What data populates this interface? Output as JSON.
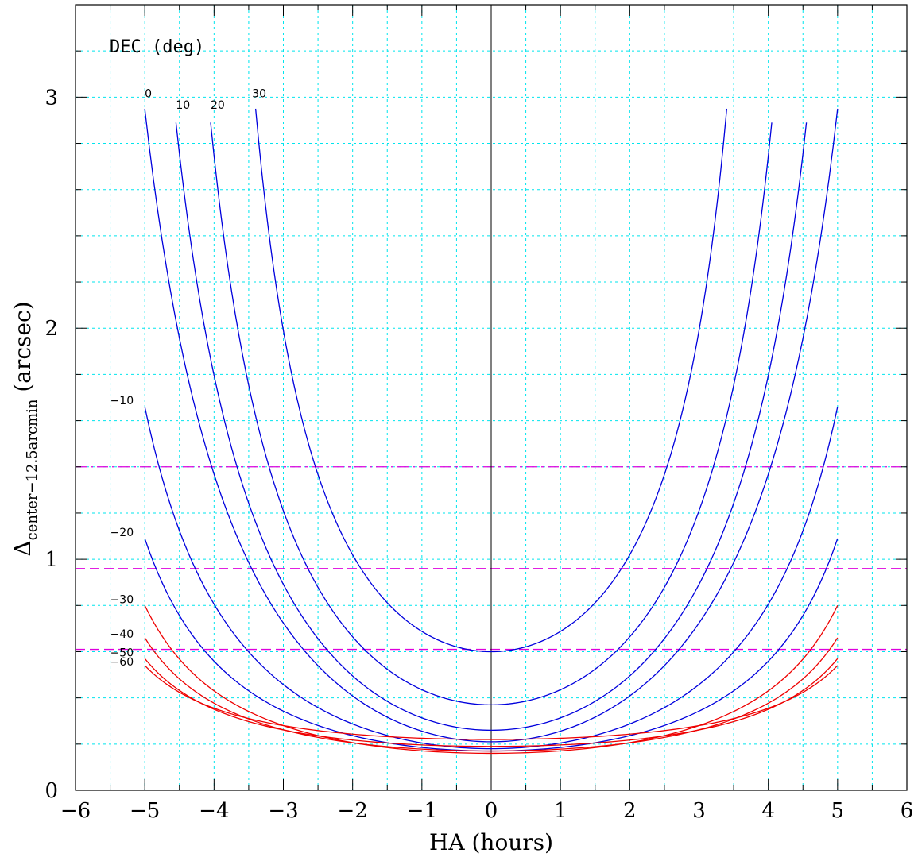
{
  "chart_data": {
    "type": "line",
    "xlabel": "HA (hours)",
    "ylabel_main": "Δ",
    "ylabel_sub": "center−12.5arcmin",
    "ylabel_tail": " (arcsec)",
    "legend_title": "DEC (deg)",
    "xlim": [
      -6,
      6
    ],
    "ylim": [
      0,
      3.4
    ],
    "x_ticks": [
      -6,
      -5,
      -4,
      -3,
      -2,
      -1,
      0,
      1,
      2,
      3,
      4,
      5,
      6
    ],
    "x_tick_labels": [
      "−6",
      "−5",
      "−4",
      "−3",
      "−2",
      "−1",
      "0",
      "1",
      "2",
      "3",
      "4",
      "5",
      "6"
    ],
    "y_ticks": [
      0,
      1,
      2,
      3
    ],
    "y_tick_labels": [
      "0",
      "1",
      "2",
      "3"
    ],
    "grid": true,
    "colors": {
      "blue": "#0000dd",
      "red": "#ee0000",
      "grid": "#00e5ee",
      "reference": "#dd00dd",
      "axis": "#000000"
    },
    "x": [
      -5,
      -4.5,
      -4,
      -3.5,
      -3,
      -2.5,
      -2,
      -1.5,
      -1,
      -0.5,
      0,
      0.5,
      1,
      1.5,
      2,
      2.5,
      3,
      3.5,
      4,
      4.5,
      5
    ],
    "series": [
      {
        "name": "30",
        "color": "blue",
        "x_range": [
          -3.4,
          3.4
        ],
        "min": 0.6,
        "end": 2.95,
        "label_x": -3.45,
        "label_y": 3.0
      },
      {
        "name": "20",
        "color": "blue",
        "x_range": [
          -4.05,
          4.05
        ],
        "min": 0.37,
        "end": 2.89,
        "label_x": -4.05,
        "label_y": 2.95
      },
      {
        "name": "10",
        "color": "blue",
        "x_range": [
          -4.55,
          4.55
        ],
        "min": 0.26,
        "end": 2.89,
        "label_x": -4.55,
        "label_y": 2.95
      },
      {
        "name": "0",
        "color": "blue",
        "x_range": [
          -5,
          5
        ],
        "min": 0.21,
        "end": 2.95,
        "label_x": -5.0,
        "label_y": 3.0
      },
      {
        "name": "−10",
        "color": "blue",
        "x_range": [
          -5,
          5
        ],
        "min": 0.18,
        "end": 1.66,
        "label_x": -5.5,
        "label_y": 1.67
      },
      {
        "name": "−20",
        "color": "blue",
        "x_range": [
          -5,
          5
        ],
        "min": 0.17,
        "end": 1.09,
        "label_x": -5.5,
        "label_y": 1.1
      },
      {
        "name": "−30",
        "color": "red",
        "x_range": [
          -5,
          5
        ],
        "min": 0.16,
        "end": 0.8,
        "label_x": -5.5,
        "label_y": 0.81
      },
      {
        "name": "−40",
        "color": "red",
        "x_range": [
          -5,
          5
        ],
        "min": 0.17,
        "end": 0.66,
        "label_x": -5.5,
        "label_y": 0.66
      },
      {
        "name": "−50",
        "color": "red",
        "x_range": [
          -5,
          5
        ],
        "min": 0.19,
        "end": 0.57,
        "label_x": -5.5,
        "label_y": 0.58
      },
      {
        "name": "−60",
        "color": "red",
        "x_range": [
          -5,
          5
        ],
        "min": 0.22,
        "end": 0.54,
        "label_x": -5.5,
        "label_y": 0.54
      }
    ],
    "reference_lines": [
      {
        "y": 1.4,
        "style": "dash-dot"
      },
      {
        "y": 0.96,
        "style": "dashed"
      },
      {
        "y": 0.61,
        "style": "dashed"
      }
    ],
    "vertical_line_x": 0
  }
}
